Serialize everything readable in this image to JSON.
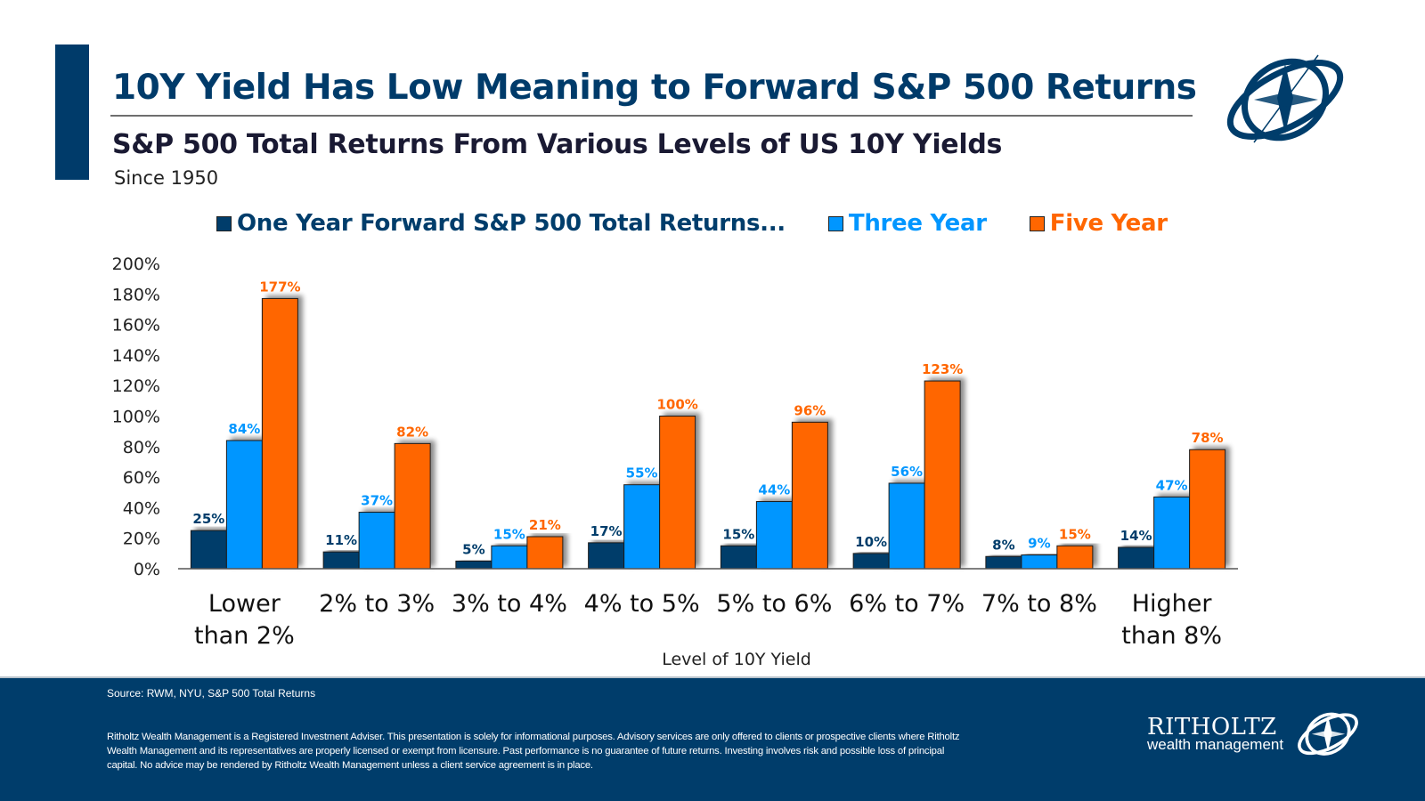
{
  "header": {
    "title": "10Y Yield Has Low Meaning to Forward S&P 500 Returns",
    "subtitle": "S&P 500 Total Returns From Various Levels of US 10Y Yields",
    "since": "Since 1950",
    "logo_icon": "compass-orbit-logo-icon"
  },
  "chart_data": {
    "type": "bar",
    "title": "S&P 500 Total Returns From Various Levels of US 10Y Yields",
    "subtitle": "Since 1950",
    "xlabel": "Level of 10Y Yield",
    "ylabel": "",
    "ylim": [
      0,
      200
    ],
    "yticks": [
      0,
      20,
      40,
      60,
      80,
      100,
      120,
      140,
      160,
      180,
      200
    ],
    "ytick_format": "{v}%",
    "grid": false,
    "legend_position": "top",
    "categories": [
      [
        "Lower",
        "than 2%"
      ],
      [
        "2% to 3%"
      ],
      [
        "3% to 4%"
      ],
      [
        "4% to 5%"
      ],
      [
        "5% to 6%"
      ],
      [
        "6% to 7%"
      ],
      [
        "7% to 8%"
      ],
      [
        "Higher",
        "than 8%"
      ]
    ],
    "series": [
      {
        "name": "One Year Forward S&P 500 Total Returns...",
        "color": "#003d6b",
        "values": [
          25,
          11,
          5,
          17,
          15,
          10,
          8,
          14
        ]
      },
      {
        "name": "Three Year",
        "color": "#0096ff",
        "values": [
          84,
          37,
          15,
          55,
          44,
          56,
          9,
          47
        ]
      },
      {
        "name": "Five Year",
        "color": "#ff6600",
        "values": [
          177,
          82,
          21,
          100,
          96,
          123,
          15,
          78
        ]
      }
    ]
  },
  "footer": {
    "source": "Source: RWM, NYU, S&P 500 Total Returns",
    "disclaimer": "Ritholtz Wealth Management is a Registered Investment Adviser. This presentation is solely for informational purposes. Advisory services are only offered to clients or prospective clients where Ritholtz Wealth Management and its representatives are properly licensed or exempt from licensure. Past performance is no guarantee of future returns. Investing involves risk and possible loss of principal capital. No advice may be rendered by Ritholtz Wealth Management unless a client service agreement is in place.",
    "brand": "RITHOLTZ",
    "brand_sub": "wealth management"
  }
}
